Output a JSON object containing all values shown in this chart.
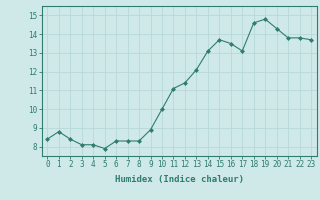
{
  "x": [
    0,
    1,
    2,
    3,
    4,
    5,
    6,
    7,
    8,
    9,
    10,
    11,
    12,
    13,
    14,
    15,
    16,
    17,
    18,
    19,
    20,
    21,
    22,
    23
  ],
  "y": [
    8.4,
    8.8,
    8.4,
    8.1,
    8.1,
    7.9,
    8.3,
    8.3,
    8.3,
    8.9,
    10.0,
    11.1,
    11.4,
    12.1,
    13.1,
    13.7,
    13.5,
    13.1,
    14.6,
    14.8,
    14.3,
    13.8,
    13.8,
    13.7
  ],
  "line_color": "#2e7d6e",
  "marker": "D",
  "marker_size": 2.0,
  "bg_color": "#cfe8e8",
  "grid_color": "#b8d8d8",
  "xlabel": "Humidex (Indice chaleur)",
  "xlim": [
    -0.5,
    23.5
  ],
  "ylim": [
    7.5,
    15.5
  ],
  "yticks": [
    8,
    9,
    10,
    11,
    12,
    13,
    14,
    15
  ],
  "xticks": [
    0,
    1,
    2,
    3,
    4,
    5,
    6,
    7,
    8,
    9,
    10,
    11,
    12,
    13,
    14,
    15,
    16,
    17,
    18,
    19,
    20,
    21,
    22,
    23
  ],
  "tick_color": "#2e7d6e",
  "label_fontsize": 6.5,
  "tick_fontsize": 5.5
}
